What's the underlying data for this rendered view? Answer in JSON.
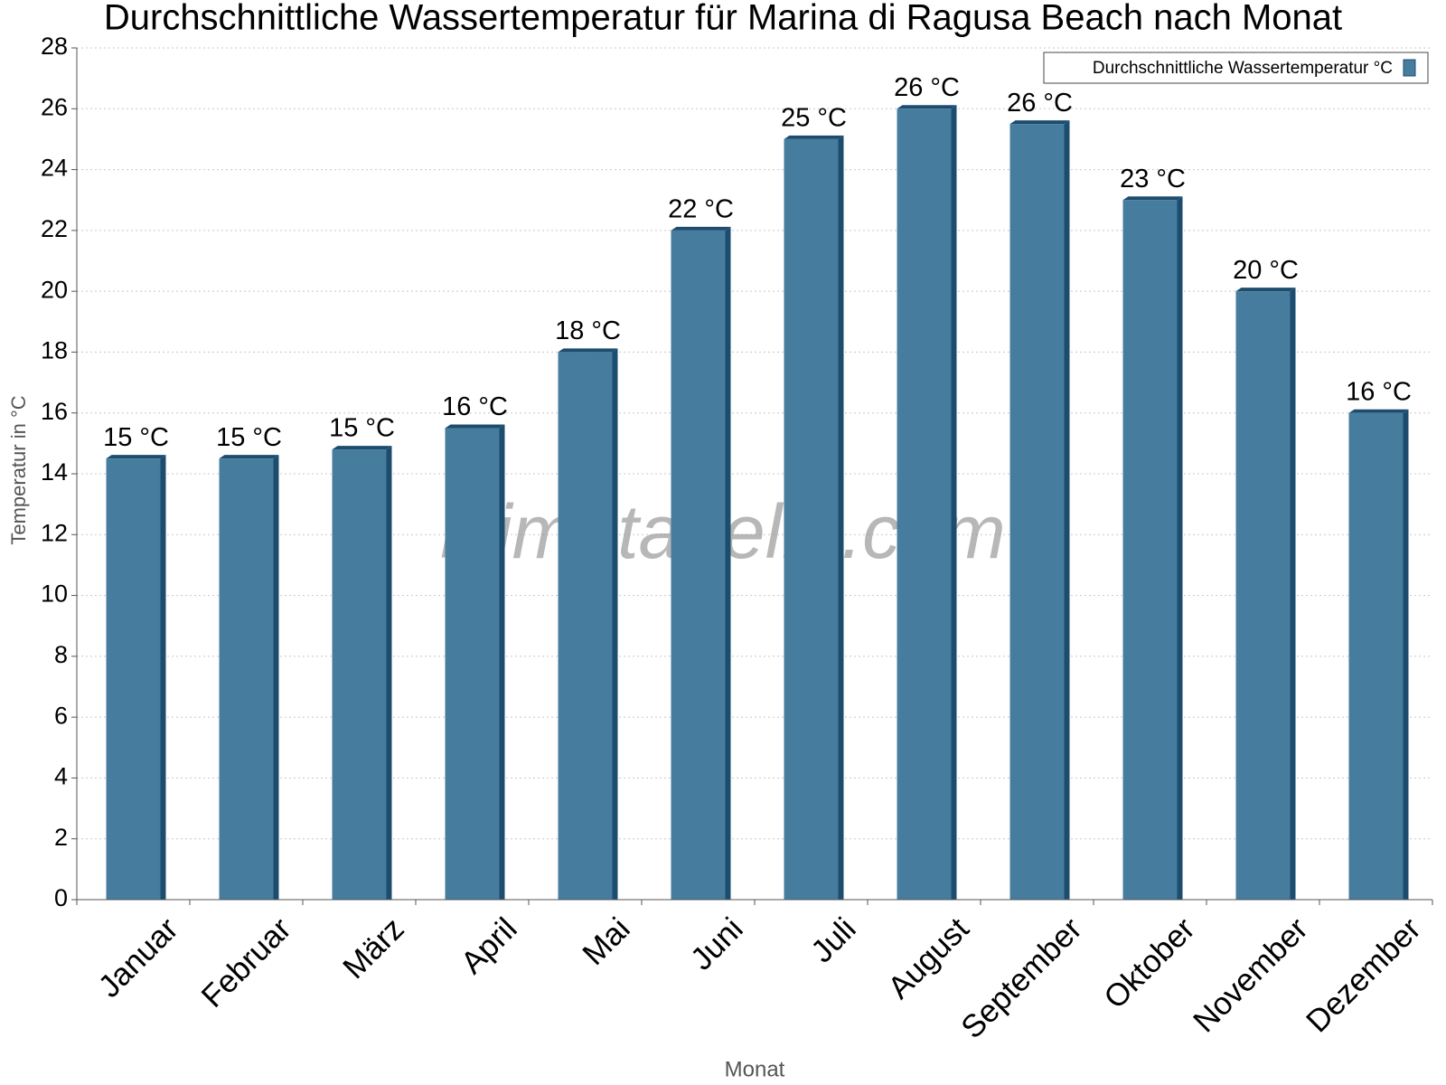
{
  "chart_data": {
    "type": "bar",
    "title": "Durchschnittliche Wassertemperatur für Marina di Ragusa Beach nach Monat",
    "x_label": "Monat",
    "y_label": "Temperatur in °C",
    "annotation": "klimatabelle.com",
    "categories": [
      "Januar",
      "Februar",
      "März",
      "April",
      "Mai",
      "Juni",
      "Juli",
      "August",
      "September",
      "Oktober",
      "November",
      "Dezember"
    ],
    "series": [
      {
        "name": "Durchschnittliche Wassertemperatur °C",
        "color": "#467c9e",
        "values": [
          14.5,
          14.5,
          14.8,
          15.5,
          18,
          22,
          25,
          26,
          25.5,
          23,
          20,
          16
        ],
        "value_labels": [
          "15 °C",
          "15 °C",
          "15 °C",
          "16 °C",
          "18 °C",
          "22 °C",
          "25 °C",
          "26 °C",
          "26 °C",
          "23 °C",
          "20 °C",
          "16 °C"
        ]
      }
    ],
    "ylim": [
      0,
      28
    ],
    "yticks": [
      0,
      2,
      4,
      6,
      8,
      10,
      12,
      14,
      16,
      18,
      20,
      22,
      24,
      26,
      28
    ],
    "grid": true,
    "legend": "top-right"
  }
}
